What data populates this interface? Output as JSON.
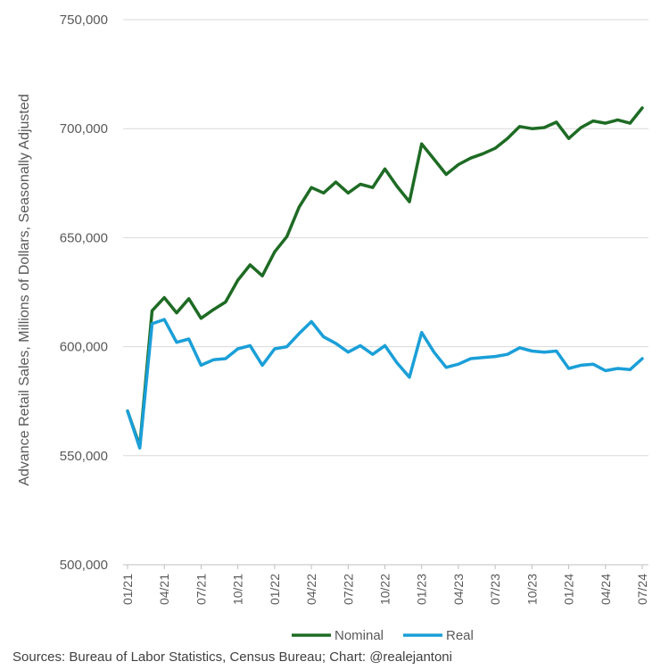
{
  "chart_data": {
    "type": "line",
    "ylabel": "Advance Retail Sales, Millions of Dollars, Seasonally Adjusted",
    "xlabel": "",
    "ylim": [
      500000,
      750000
    ],
    "yticks": [
      500000,
      550000,
      600000,
      650000,
      700000,
      750000
    ],
    "ytick_labels": [
      "500,000",
      "550,000",
      "600,000",
      "650,000",
      "700,000",
      "750,000"
    ],
    "grid": "horizontal",
    "legend_position": "bottom",
    "x": [
      "01/21",
      "02/21",
      "03/21",
      "04/21",
      "05/21",
      "06/21",
      "07/21",
      "08/21",
      "09/21",
      "10/21",
      "11/21",
      "12/21",
      "01/22",
      "02/22",
      "03/22",
      "04/22",
      "05/22",
      "06/22",
      "07/22",
      "08/22",
      "09/22",
      "10/22",
      "11/22",
      "12/22",
      "01/23",
      "02/23",
      "03/23",
      "04/23",
      "05/23",
      "06/23",
      "07/23",
      "08/23",
      "09/23",
      "10/23",
      "11/23",
      "12/23",
      "01/24",
      "02/24",
      "03/24",
      "04/24",
      "05/24",
      "06/24",
      "07/24"
    ],
    "xtick_labels": [
      "01/21",
      "04/21",
      "07/21",
      "10/21",
      "01/22",
      "04/22",
      "07/22",
      "10/22",
      "01/23",
      "04/23",
      "07/23",
      "10/23",
      "01/24",
      "04/24",
      "07/24"
    ],
    "series": [
      {
        "name": "Nominal",
        "color": "#1e6b24",
        "values": [
          570500,
          554500,
          616500,
          622500,
          615500,
          622000,
          613000,
          617000,
          620500,
          630500,
          637500,
          632500,
          643500,
          650500,
          664000,
          673000,
          670500,
          675500,
          670500,
          674500,
          673000,
          681500,
          673500,
          666500,
          693000,
          686000,
          679000,
          683500,
          686500,
          688500,
          691000,
          695500,
          701000,
          700000,
          700500,
          703000,
          695500,
          700500,
          703500,
          702500,
          704000,
          702500,
          709500
        ]
      },
      {
        "name": "Real",
        "color": "#1a9fd8",
        "values": [
          570500,
          553500,
          610500,
          612500,
          602000,
          603500,
          591500,
          594000,
          594500,
          599000,
          600500,
          591500,
          599000,
          600000,
          606000,
          611500,
          604500,
          601500,
          597500,
          600500,
          596500,
          600500,
          592500,
          586000,
          606500,
          597500,
          590500,
          592000,
          594500,
          595000,
          595500,
          596500,
          599500,
          598000,
          597500,
          598000,
          590000,
          591500,
          592000,
          589000,
          590000,
          589500,
          594500
        ]
      }
    ]
  },
  "footer": {
    "source": "Sources: Bureau of Labor Statistics, Census Bureau; Chart: @realejantoni"
  }
}
